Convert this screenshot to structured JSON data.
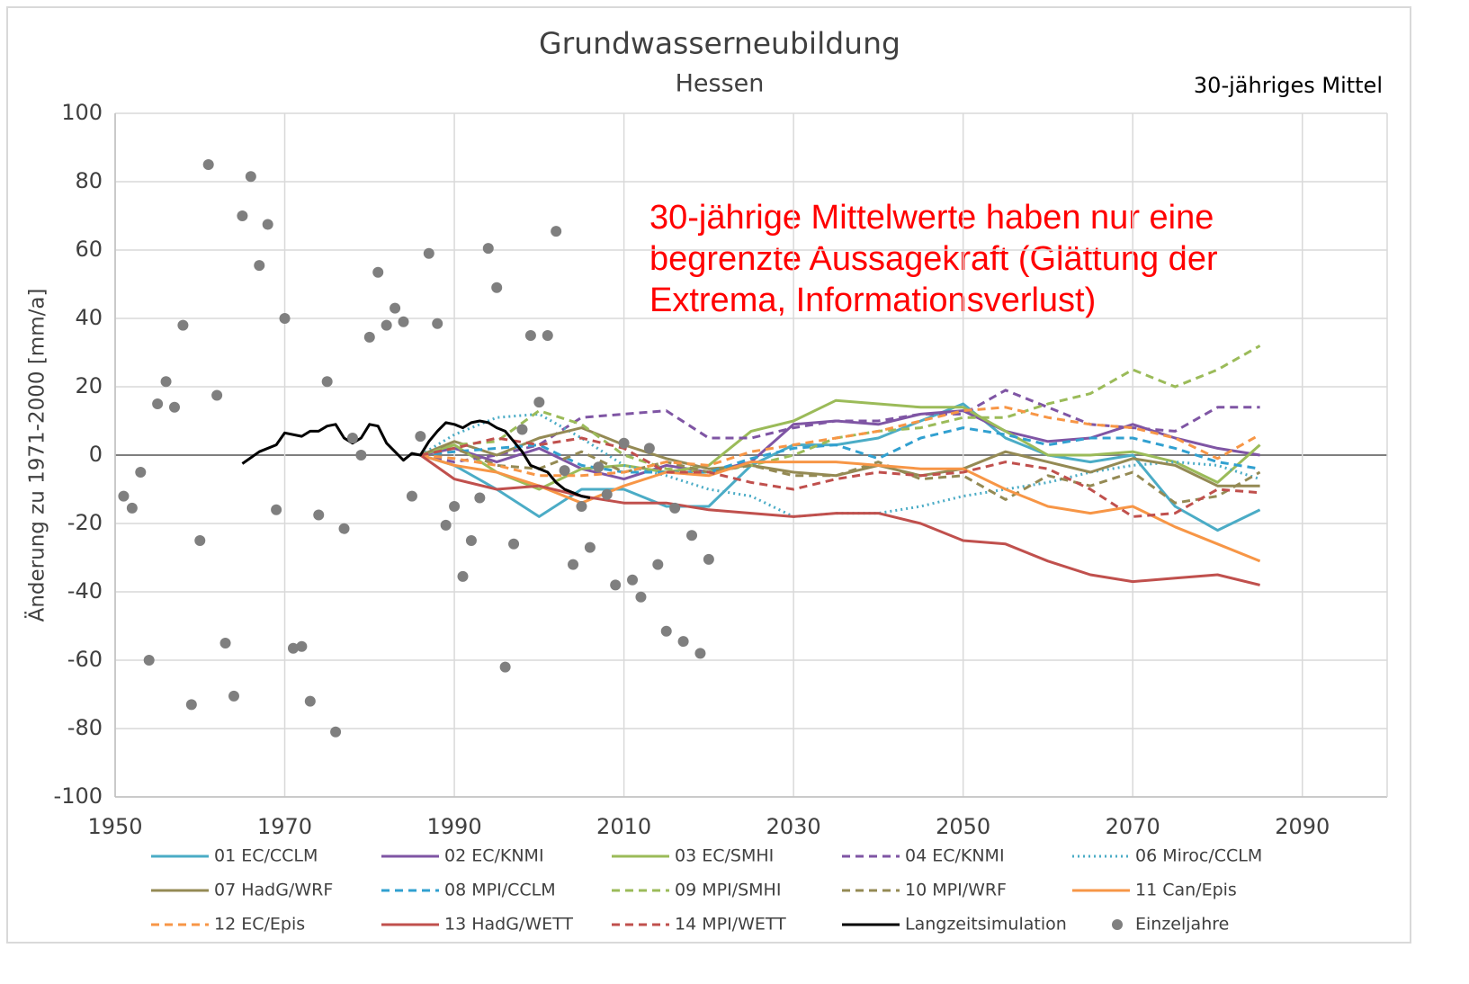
{
  "chart_data": {
    "type": "line",
    "title": "Grundwasserneubildung",
    "subtitle": "Hessen",
    "corner_note": "30-jähriges Mittel",
    "y_label": "Änderung zu 1971-2000 [mm/a]",
    "annotation": [
      "30-jährige Mittelwerte haben nur eine",
      "begrenzte Aussagekraft (Glättung der",
      "Extrema, Informationsverlust)"
    ],
    "annotation_color": "#ff0000",
    "xlim": [
      1950,
      2100
    ],
    "xticks": [
      1950,
      1970,
      1990,
      2010,
      2030,
      2050,
      2070,
      2090
    ],
    "ylim": [
      -100,
      100
    ],
    "yticks": [
      -100,
      -80,
      -60,
      -40,
      -20,
      0,
      20,
      40,
      60,
      80,
      100
    ],
    "grid": true,
    "legend": "bottom",
    "series": [
      {
        "name": "01 EC/CCLM",
        "color": "#4bacc6",
        "style": "solid",
        "x": [
          1986,
          1990,
          1995,
          2000,
          2005,
          2010,
          2015,
          2020,
          2025,
          2030,
          2035,
          2040,
          2045,
          2050,
          2055,
          2060,
          2065,
          2070,
          2075,
          2080,
          2085
        ],
        "values": [
          0,
          -3,
          -10,
          -18,
          -10,
          -10,
          -15,
          -15,
          -3,
          3,
          3,
          5,
          10,
          15,
          5,
          0,
          -2,
          0,
          -15,
          -22,
          -16
        ]
      },
      {
        "name": "02 EC/KNMI",
        "color": "#7f55a4",
        "style": "solid",
        "x": [
          1986,
          1990,
          1995,
          2000,
          2005,
          2010,
          2015,
          2020,
          2025,
          2030,
          2035,
          2040,
          2045,
          2050,
          2055,
          2060,
          2065,
          2070,
          2075,
          2080,
          2085
        ],
        "values": [
          0,
          2,
          -2,
          2,
          -4,
          -7,
          -3,
          -5,
          -2,
          9,
          10,
          9,
          12,
          13,
          7,
          4,
          5,
          9,
          5,
          2,
          0
        ]
      },
      {
        "name": "03 EC/SMHI",
        "color": "#9bbb59",
        "style": "solid",
        "x": [
          1986,
          1990,
          1995,
          2000,
          2005,
          2010,
          2015,
          2020,
          2025,
          2030,
          2035,
          2040,
          2045,
          2050,
          2055,
          2060,
          2065,
          2070,
          2075,
          2080,
          2085
        ],
        "values": [
          0,
          3,
          -5,
          -10,
          -4,
          -3,
          -5,
          -3,
          7,
          10,
          16,
          15,
          14,
          14,
          7,
          0,
          0,
          1,
          -2,
          -8,
          3
        ]
      },
      {
        "name": "04 EC/KNMI",
        "color": "#7f55a4",
        "style": "dashed",
        "x": [
          1986,
          1990,
          1995,
          2000,
          2005,
          2010,
          2015,
          2020,
          2025,
          2030,
          2035,
          2040,
          2045,
          2050,
          2055,
          2060,
          2065,
          2070,
          2075,
          2080,
          2085
        ],
        "values": [
          0,
          -2,
          0,
          3,
          11,
          12,
          13,
          5,
          5,
          8,
          10,
          10,
          12,
          12,
          19,
          14,
          9,
          8,
          7,
          14,
          14
        ]
      },
      {
        "name": "06 Miroc/CCLM",
        "color": "#4bacc6",
        "style": "dotted",
        "x": [
          1986,
          1990,
          1995,
          2000,
          2005,
          2010,
          2015,
          2020,
          2025,
          2030,
          2035,
          2040,
          2045,
          2050,
          2055,
          2060,
          2065,
          2070,
          2075,
          2080,
          2085
        ],
        "values": [
          0,
          6,
          11,
          12,
          5,
          -3,
          -6,
          -10,
          -12,
          -18,
          -17,
          -17,
          -15,
          -12,
          -10,
          -8,
          -5,
          -3,
          -2,
          -3,
          -7
        ]
      },
      {
        "name": "07 HadG/WRF",
        "color": "#948a54",
        "style": "solid",
        "x": [
          1986,
          1990,
          1995,
          2000,
          2005,
          2010,
          2015,
          2020,
          2025,
          2030,
          2035,
          2040,
          2045,
          2050,
          2055,
          2060,
          2065,
          2070,
          2075,
          2080,
          2085
        ],
        "values": [
          0,
          4,
          0,
          5,
          8,
          3,
          -1,
          -4,
          -3,
          -5,
          -6,
          -3,
          -6,
          -4,
          1,
          -2,
          -5,
          -1,
          -3,
          -9,
          -9
        ]
      },
      {
        "name": "08 MPI/CCLM",
        "color": "#31a0d0",
        "style": "dashed",
        "x": [
          1986,
          1990,
          1995,
          2000,
          2005,
          2010,
          2015,
          2020,
          2025,
          2030,
          2035,
          2040,
          2045,
          2050,
          2055,
          2060,
          2065,
          2070,
          2075,
          2080,
          2085
        ],
        "values": [
          0,
          1,
          2,
          3,
          -3,
          -5,
          -5,
          -5,
          -1,
          2,
          3,
          -1,
          5,
          8,
          6,
          3,
          5,
          5,
          2,
          -2,
          -4
        ]
      },
      {
        "name": "09 MPI/SMHI",
        "color": "#9bbb59",
        "style": "dashed",
        "x": [
          1986,
          1990,
          1995,
          2000,
          2005,
          2010,
          2015,
          2020,
          2025,
          2030,
          2035,
          2040,
          2045,
          2050,
          2055,
          2060,
          2065,
          2070,
          2075,
          2080,
          2085
        ],
        "values": [
          0,
          3,
          4,
          13,
          9,
          0,
          -4,
          -5,
          -3,
          0,
          5,
          7,
          8,
          11,
          11,
          15,
          18,
          25,
          20,
          25,
          32
        ]
      },
      {
        "name": "10 MPI/WRF",
        "color": "#948a54",
        "style": "dashed",
        "x": [
          1986,
          1990,
          1995,
          2000,
          2005,
          2010,
          2015,
          2020,
          2025,
          2030,
          2035,
          2040,
          2045,
          2050,
          2055,
          2060,
          2065,
          2070,
          2075,
          2080,
          2085
        ],
        "values": [
          0,
          2,
          -3,
          -4,
          1,
          -5,
          -2,
          -5,
          -3,
          -6,
          -6,
          -2,
          -7,
          -6,
          -13,
          -6,
          -9,
          -5,
          -14,
          -12,
          -5
        ]
      },
      {
        "name": "11 Can/Epis",
        "color": "#f79646",
        "style": "solid",
        "x": [
          1986,
          1990,
          1995,
          2000,
          2005,
          2010,
          2015,
          2020,
          2025,
          2030,
          2035,
          2040,
          2045,
          2050,
          2055,
          2060,
          2065,
          2070,
          2075,
          2080,
          2085
        ],
        "values": [
          0,
          -3,
          -5,
          -9,
          -14,
          -9,
          -5,
          -6,
          -2,
          -2,
          -2,
          -3,
          -4,
          -4,
          -10,
          -15,
          -17,
          -15,
          -21,
          -26,
          -31
        ]
      },
      {
        "name": "12 EC/Epis",
        "color": "#f79646",
        "style": "dashed",
        "x": [
          1986,
          1990,
          1995,
          2000,
          2005,
          2010,
          2015,
          2020,
          2025,
          2030,
          2035,
          2040,
          2045,
          2050,
          2055,
          2060,
          2065,
          2070,
          2075,
          2080,
          2085
        ],
        "values": [
          0,
          -1,
          -3,
          -6,
          -6,
          -5,
          -2,
          -3,
          1,
          3,
          5,
          7,
          10,
          13,
          14,
          11,
          9,
          8,
          5,
          -1,
          6
        ]
      },
      {
        "name": "13 HadG/WETT",
        "color": "#c0504d",
        "style": "solid",
        "x": [
          1986,
          1990,
          1995,
          2000,
          2005,
          2010,
          2015,
          2020,
          2025,
          2030,
          2035,
          2040,
          2045,
          2050,
          2055,
          2060,
          2065,
          2070,
          2075,
          2080,
          2085
        ],
        "values": [
          0,
          -7,
          -10,
          -9,
          -12,
          -14,
          -14,
          -16,
          -17,
          -18,
          -17,
          -17,
          -20,
          -25,
          -26,
          -31,
          -35,
          -37,
          -36,
          -35,
          -38
        ]
      },
      {
        "name": "14 MPI/WETT",
        "color": "#c0504d",
        "style": "dashed",
        "x": [
          1986,
          1990,
          1995,
          2000,
          2005,
          2010,
          2015,
          2020,
          2025,
          2030,
          2035,
          2040,
          2045,
          2050,
          2055,
          2060,
          2065,
          2070,
          2075,
          2080,
          2085
        ],
        "values": [
          0,
          2,
          5,
          3,
          5,
          2,
          -5,
          -5,
          -8,
          -10,
          -7,
          -5,
          -6,
          -5,
          -2,
          -4,
          -10,
          -18,
          -17,
          -10,
          -11
        ]
      },
      {
        "name": "Langzeitsimulation",
        "color": "#000000",
        "style": "solid",
        "x": [
          1965,
          1967,
          1969,
          1970,
          1972,
          1973,
          1974,
          1975,
          1976,
          1977,
          1978,
          1979,
          1980,
          1981,
          1982,
          1983,
          1984,
          1985,
          1986,
          1987,
          1988,
          1989,
          1990,
          1991,
          1992,
          1993,
          1994,
          1995,
          1996,
          1997,
          1998,
          1999,
          2000,
          2001,
          2002,
          2003,
          2004,
          2005,
          2006
        ],
        "values": [
          -2.5,
          1,
          3,
          6.5,
          5.5,
          7,
          7,
          8.5,
          9,
          5,
          3.5,
          5,
          9,
          8.5,
          3.5,
          1,
          -1.5,
          0.5,
          0,
          4,
          7,
          9.5,
          9,
          8,
          9.5,
          10,
          9.5,
          8,
          7,
          4,
          1,
          -3,
          -4,
          -5,
          -8,
          -10,
          -11,
          -12,
          -12.5
        ]
      },
      {
        "name": "Einzeljahre",
        "color": "#7f7f7f",
        "style": "scatter",
        "x": [
          1951,
          1952,
          1953,
          1954,
          1955,
          1956,
          1957,
          1958,
          1959,
          1960,
          1961,
          1962,
          1963,
          1964,
          1965,
          1966,
          1967,
          1968,
          1969,
          1970,
          1971,
          1972,
          1973,
          1974,
          1975,
          1976,
          1977,
          1978,
          1979,
          1980,
          1981,
          1982,
          1983,
          1984,
          1985,
          1986,
          1987,
          1988,
          1989,
          1990,
          1991,
          1992,
          1993,
          1994,
          1995,
          1996,
          1997,
          1998,
          1999,
          2000,
          2001,
          2002,
          2003,
          2004,
          2005,
          2006,
          2007,
          2008,
          2009,
          2010,
          2011,
          2012,
          2013,
          2014,
          2015,
          2016,
          2017,
          2018,
          2019,
          2020
        ],
        "values": [
          -12,
          -15.5,
          -5,
          -60,
          15,
          21.5,
          14,
          38,
          -73,
          -25,
          85,
          17.5,
          -55,
          -70.5,
          70,
          81.5,
          55.5,
          67.5,
          -16,
          40,
          -56.5,
          -56,
          -72,
          -17.5,
          21.5,
          -81,
          -21.5,
          5,
          0,
          34.5,
          53.5,
          38,
          43,
          39,
          -12,
          5.5,
          59,
          38.5,
          -20.5,
          -15,
          -35.5,
          -25,
          -12.5,
          60.5,
          49,
          -62,
          -26,
          7.5,
          35,
          15.5,
          35,
          65.5,
          -4.5,
          -32,
          -15,
          -27,
          -3.5,
          -11.5,
          -38,
          3.5,
          -36.5,
          -41.5,
          2,
          -32,
          -51.5,
          -15.5,
          -54.5,
          -23.5,
          -58,
          -30.5
        ]
      }
    ]
  }
}
